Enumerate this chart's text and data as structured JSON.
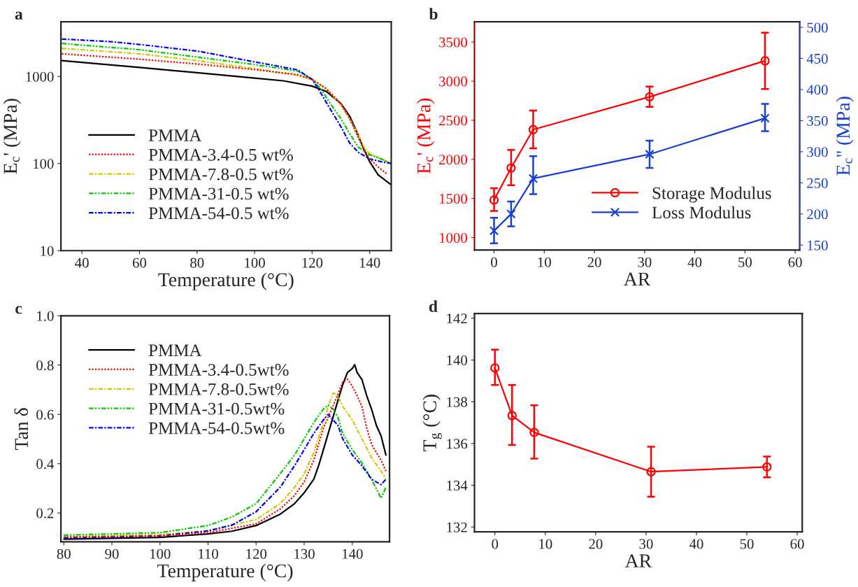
{
  "chart_data": [
    {
      "type": "line",
      "annotations": [
        "a"
      ],
      "xlabel": "Temperature (°C)",
      "ylabel": "E$_{c}$' (MPa)",
      "log": "y",
      "xlim": [
        32.7,
        147.5
      ],
      "xticks": [
        40,
        60,
        80,
        100,
        120,
        140
      ],
      "ylim": [
        10,
        4250
      ],
      "yticks": [
        10,
        100,
        1000
      ],
      "legend": "bottom left",
      "series": [
        {
          "name": "PMMA",
          "color": "#000000",
          "line_style": "solid",
          "x": [
            33,
            60,
            80,
            100,
            110,
            120,
            125,
            130,
            133,
            136,
            138,
            140,
            143,
            147.5
          ],
          "values": [
            1520,
            1270,
            1105,
            957,
            891,
            774,
            671,
            487,
            353,
            214,
            145,
            105,
            74,
            57
          ]
        },
        {
          "name": "PMMA-3.4-0.5 wt%",
          "color": "#ff0000",
          "line_style": "dotted",
          "x": [
            33,
            60,
            80,
            100,
            115,
            120,
            125,
            130,
            133,
            136,
            138,
            140,
            143,
            146
          ],
          "values": [
            1820,
            1580,
            1390,
            1200,
            1045,
            925,
            721,
            487,
            329,
            200,
            145,
            113,
            91,
            76
          ]
        },
        {
          "name": "PMMA-7.8-0.5 wt%",
          "color": "#cccc00",
          "line_style": "dashdot",
          "x": [
            33,
            60,
            80,
            100,
            115,
            120,
            125,
            130,
            133,
            136,
            138,
            140,
            144,
            147.5
          ],
          "values": [
            2100,
            1820,
            1520,
            1230,
            1030,
            925,
            721,
            470,
            329,
            214,
            155,
            130,
            113,
            100
          ]
        },
        {
          "name": "PMMA-31-0.5 wt%",
          "color": "#00cc00",
          "line_style": "dashdotdot",
          "x": [
            33,
            60,
            80,
            100,
            115,
            120,
            123,
            126,
            130,
            133,
            136,
            140,
            144,
            147.5
          ],
          "values": [
            2390,
            2030,
            1670,
            1370,
            1150,
            925,
            721,
            505,
            329,
            222,
            155,
            126,
            113,
            100
          ]
        },
        {
          "name": "PMMA-54-0.5 wt%",
          "color": "#0000ff",
          "line_style": "dashdot",
          "x": [
            33,
            50,
            60,
            80,
            100,
            115,
            120,
            123,
            126,
            130,
            133,
            136,
            140,
            144,
            147.5
          ],
          "values": [
            2690,
            2510,
            2330,
            1960,
            1470,
            1190,
            925,
            647,
            438,
            265,
            173,
            135,
            113,
            105,
            100
          ]
        }
      ]
    },
    {
      "type": "line",
      "annotations": [
        "b"
      ],
      "xlabel": "AR",
      "ylabel": "E$_{c}$' (MPa)",
      "y2label": "E$_{c}$'' (MPa)",
      "xlim": [
        -3.9,
        60.9
      ],
      "xticks": [
        0,
        10,
        20,
        30,
        40,
        50,
        60
      ],
      "ylim": [
        840,
        3760
      ],
      "yticks": [
        1000,
        1500,
        2000,
        2500,
        3000,
        3500
      ],
      "y2lim": [
        142,
        509
      ],
      "y2ticks": [
        150,
        200,
        250,
        300,
        350,
        400,
        450,
        500
      ],
      "legend": "bottom right",
      "series": [
        {
          "name": "Storage Modulus",
          "color": "#ff0000",
          "marker": "circle",
          "x": [
            0,
            3.4,
            7.8,
            31,
            54
          ],
          "values": [
            1480,
            1890,
            2380,
            2800,
            3260
          ],
          "errors": [
            [
              1340,
              1630
            ],
            [
              1670,
              2120
            ],
            [
              2140,
              2625
            ],
            [
              2670,
              2930
            ],
            [
              2900,
              3620
            ]
          ]
        },
        {
          "name": "Loss Modulus",
          "color": "#1a3fd6",
          "marker": "cross",
          "axis": "y2",
          "x": [
            0,
            3.4,
            7.8,
            31,
            54
          ],
          "values": [
            173,
            200,
            257,
            296,
            354
          ],
          "errors": [
            [
              153,
              194
            ],
            [
              180,
              220
            ],
            [
              232,
              293
            ],
            [
              274,
              318
            ],
            [
              333,
              377
            ]
          ]
        }
      ]
    },
    {
      "type": "line",
      "annotations": [
        "c"
      ],
      "xlabel": "Temperature (°C)",
      "ylabel": "Tan δ",
      "xlim": [
        79.4,
        147.75
      ],
      "xticks": [
        80,
        90,
        100,
        110,
        120,
        130,
        140
      ],
      "ylim": [
        0.083,
        1.0
      ],
      "yticks": [
        0.2,
        0.4,
        0.6,
        0.8,
        {
          "value": 1.0,
          "label": "1.0"
        }
      ],
      "legend": "top left",
      "series": [
        {
          "name": "PMMA",
          "color": "#000000",
          "line_style": "solid",
          "x": [
            80,
            100,
            110,
            115,
            120,
            125,
            128,
            130,
            132,
            133,
            134,
            135,
            136,
            137,
            138,
            139,
            140,
            140.5,
            141,
            142,
            143,
            144,
            145,
            146,
            147
          ],
          "values": [
            0.094,
            0.101,
            0.115,
            0.126,
            0.149,
            0.195,
            0.238,
            0.282,
            0.337,
            0.392,
            0.457,
            0.523,
            0.589,
            0.655,
            0.72,
            0.77,
            0.786,
            0.802,
            0.77,
            0.742,
            0.676,
            0.622,
            0.556,
            0.512,
            0.435
          ]
        },
        {
          "name": "PMMA-3.4-0.5wt%",
          "color": "#ff0000",
          "line_style": "dotted",
          "x": [
            80,
            100,
            110,
            120,
            125,
            128,
            130,
            132,
            134,
            136,
            138,
            139,
            140,
            141,
            142,
            143,
            144,
            145,
            146,
            147
          ],
          "values": [
            0.102,
            0.107,
            0.12,
            0.156,
            0.216,
            0.271,
            0.326,
            0.414,
            0.545,
            0.633,
            0.731,
            0.742,
            0.715,
            0.676,
            0.633,
            0.545,
            0.479,
            0.446,
            0.414,
            0.37
          ]
        },
        {
          "name": "PMMA-7.8-0.5wt%",
          "color": "#cccc00",
          "line_style": "dashdot",
          "x": [
            80,
            100,
            110,
            120,
            125,
            128,
            130,
            132,
            134,
            135,
            136,
            137,
            138,
            140,
            142,
            144,
            146,
            147
          ],
          "values": [
            0.104,
            0.112,
            0.129,
            0.173,
            0.238,
            0.304,
            0.359,
            0.446,
            0.567,
            0.633,
            0.687,
            0.676,
            0.633,
            0.578,
            0.501,
            0.425,
            0.37,
            0.337
          ]
        },
        {
          "name": "PMMA-31-0.5wt%",
          "color": "#00cc00",
          "line_style": "dashdotdot",
          "x": [
            80,
            100,
            110,
            115,
            120,
            125,
            128,
            130,
            132,
            134,
            135,
            136,
            137,
            138,
            140,
            142,
            144,
            146,
            147
          ],
          "values": [
            0.11,
            0.12,
            0.149,
            0.184,
            0.238,
            0.359,
            0.435,
            0.501,
            0.567,
            0.622,
            0.638,
            0.622,
            0.589,
            0.523,
            0.457,
            0.403,
            0.337,
            0.26,
            0.304
          ]
        },
        {
          "name": "PMMA-54-0.5wt%",
          "color": "#0000ff",
          "line_style": "dashdot",
          "x": [
            80,
            100,
            110,
            115,
            120,
            125,
            128,
            130,
            132,
            134,
            135,
            136,
            137,
            138,
            140,
            142,
            144,
            146,
            147
          ],
          "values": [
            0.098,
            0.107,
            0.127,
            0.151,
            0.205,
            0.304,
            0.392,
            0.457,
            0.523,
            0.578,
            0.6,
            0.578,
            0.556,
            0.501,
            0.435,
            0.392,
            0.337,
            0.315,
            0.337
          ]
        }
      ]
    },
    {
      "type": "line",
      "annotations": [
        "d"
      ],
      "xlabel": "AR",
      "ylabel": "T$_{g}$ (°C)",
      "xlim": [
        -4.06,
        61
      ],
      "xticks": [
        0,
        10,
        20,
        30,
        40,
        50,
        60
      ],
      "ylim": [
        131.77,
        142.23
      ],
      "yticks": [
        132,
        134,
        136,
        138,
        140,
        142
      ],
      "series": [
        {
          "color": "#ff0000",
          "marker": "circle",
          "x": [
            0,
            3.4,
            7.8,
            31,
            54
          ],
          "values": [
            139.62,
            137.34,
            136.53,
            134.65,
            134.88
          ],
          "errors": [
            [
              138.8,
              140.5
            ],
            [
              135.93,
              138.8
            ],
            [
              135.28,
              137.83
            ],
            [
              133.45,
              135.85
            ],
            [
              134.38,
              135.38
            ]
          ]
        }
      ]
    }
  ]
}
